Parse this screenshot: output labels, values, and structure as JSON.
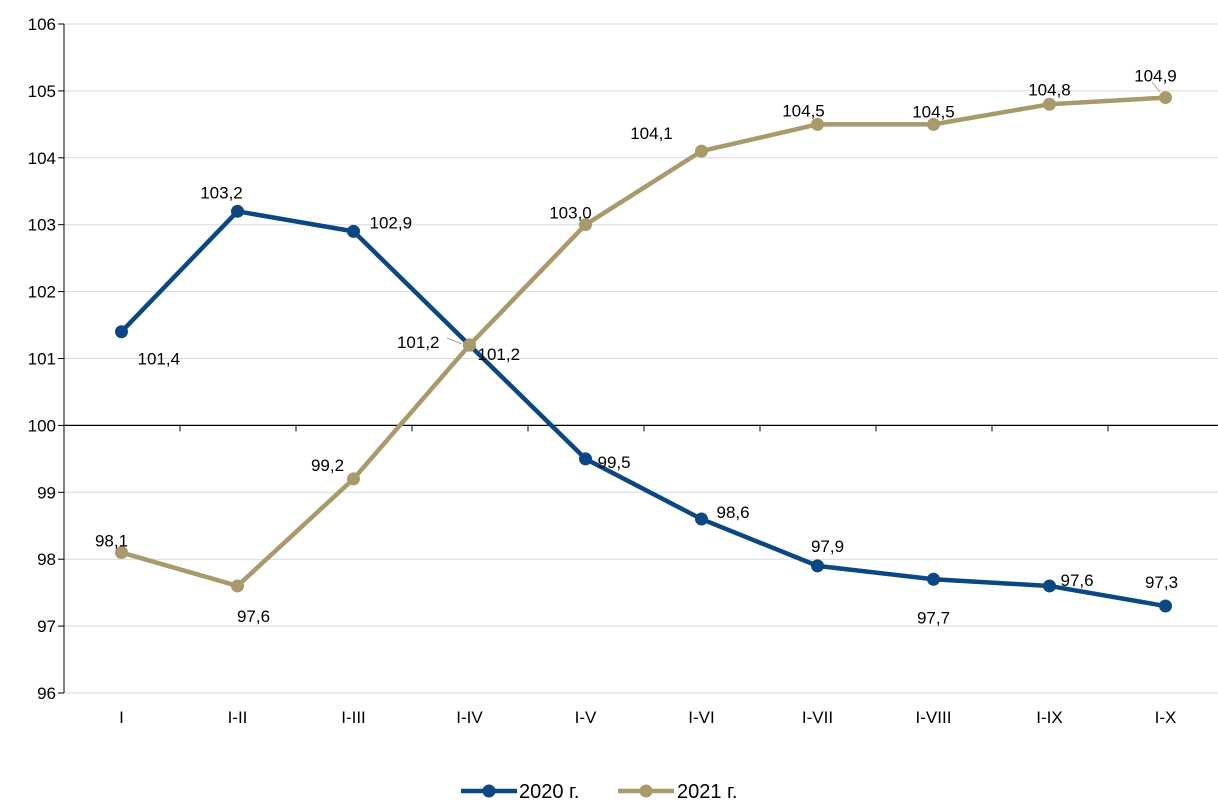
{
  "chart_data": {
    "type": "line",
    "categories": [
      "I",
      "I-II",
      "I-III",
      "I-IV",
      "I-V",
      "I-VI",
      "I-VII",
      "I-VIII",
      "I-IX",
      "I-X"
    ],
    "series": [
      {
        "name": "2020 г.",
        "color": "#0b4782",
        "values": [
          101.4,
          103.2,
          102.9,
          101.2,
          99.5,
          98.6,
          97.9,
          97.7,
          97.6,
          97.3
        ],
        "labels": [
          "101,4",
          "103,2",
          "102,9",
          "101,2",
          "99,5",
          "98,6",
          "97,9",
          "97,7",
          "97,6",
          "97,3"
        ]
      },
      {
        "name": "2021 г.",
        "color": "#a89a6a",
        "values": [
          98.1,
          97.6,
          99.2,
          101.2,
          103.0,
          104.1,
          104.5,
          104.5,
          104.8,
          104.9
        ],
        "labels": [
          "98,1",
          "97,6",
          "99,2",
          "101,2",
          "103,0",
          "104,1",
          "104,5",
          "104,5",
          "104,8",
          "104,9"
        ]
      }
    ],
    "ylim": [
      96,
      106
    ],
    "yticks": [
      "96",
      "97",
      "98",
      "99",
      "100",
      "101",
      "102",
      "103",
      "104",
      "105",
      "106"
    ],
    "baseline": 100,
    "grid": true,
    "legend_position": "bottom",
    "title": "",
    "xlabel": "",
    "ylabel": ""
  }
}
